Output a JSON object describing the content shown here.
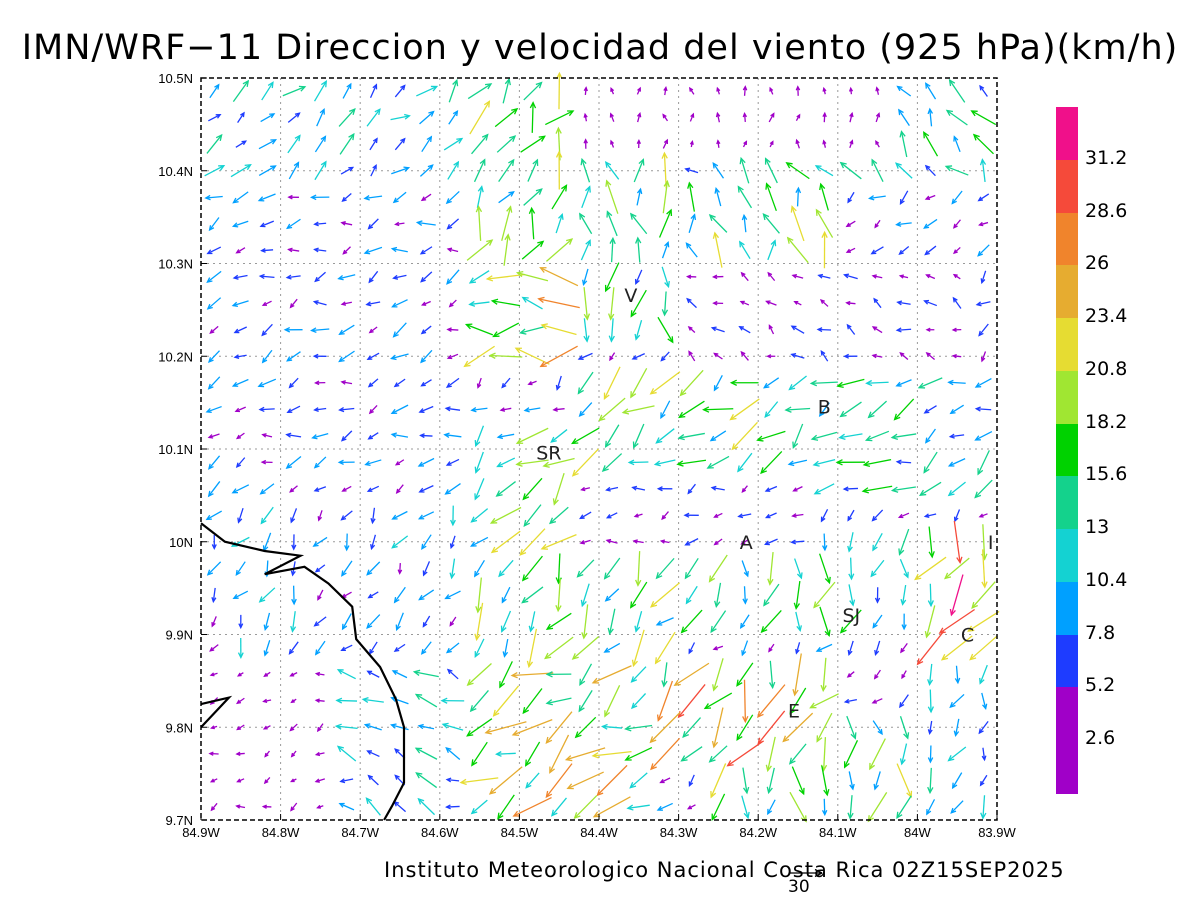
{
  "title": "IMN/WRF−11 Direccion y velocidad del viento (925 hPa)(km/h)",
  "footer": "Instituto Meteorologico Nacional Costa Rica 02Z15SEP2025",
  "reference_vector": {
    "label": "30",
    "value": 30
  },
  "colorbar": {
    "levels": [
      "31.2",
      "28.6",
      "26",
      "23.4",
      "20.8",
      "18.2",
      "15.6",
      "13",
      "10.4",
      "7.8",
      "5.2",
      "2.6"
    ],
    "colors": [
      "#f0108a",
      "#f54a3a",
      "#f0842c",
      "#e6ac30",
      "#e6dc32",
      "#a0e632",
      "#00d200",
      "#14d28c",
      "#14d2d2",
      "#00a0ff",
      "#1e3cff",
      "#a000c8",
      "#a000c8"
    ]
  },
  "chart_data": {
    "type": "vector-field",
    "title": "IMN/WRF−11 Direccion y velocidad del viento (925 hPa)(km/h)",
    "x_ticks": [
      "84.9W",
      "84.8W",
      "84.7W",
      "84.6W",
      "84.5W",
      "84.4W",
      "84.3W",
      "84.2W",
      "84.1W",
      "84W",
      "83.9W"
    ],
    "y_ticks": [
      "10.5N",
      "10.4N",
      "10.3N",
      "10.2N",
      "10.1N",
      "10N",
      "9.9N",
      "9.8N",
      "9.7N"
    ],
    "xlim": [
      -84.9,
      -83.9
    ],
    "ylim": [
      9.7,
      10.5
    ],
    "grid": true,
    "city_labels": [
      {
        "text": "V",
        "lon": -84.36,
        "lat": 10.266
      },
      {
        "text": "B",
        "lon": -84.117,
        "lat": 10.146
      },
      {
        "text": "SR",
        "lon": -84.463,
        "lat": 10.096
      },
      {
        "text": "A",
        "lon": -84.215,
        "lat": 10.0
      },
      {
        "text": "I",
        "lon": -83.908,
        "lat": 10.0
      },
      {
        "text": "SJ",
        "lon": -84.083,
        "lat": 9.921
      },
      {
        "text": "C",
        "lon": -83.937,
        "lat": 9.9
      },
      {
        "text": "E",
        "lon": -84.155,
        "lat": 9.818
      }
    ],
    "coastline": [
      [
        -84.9,
        10.02
      ],
      [
        -84.87,
        10.0
      ],
      [
        -84.82,
        9.99
      ],
      [
        -84.775,
        9.985
      ],
      [
        -84.82,
        9.965
      ],
      [
        -84.77,
        9.973
      ],
      [
        -84.74,
        9.955
      ],
      [
        -84.71,
        9.93
      ],
      [
        -84.705,
        9.895
      ],
      [
        -84.675,
        9.865
      ],
      [
        -84.655,
        9.83
      ],
      [
        -84.645,
        9.8
      ],
      [
        -84.645,
        9.74
      ],
      [
        -84.66,
        9.715
      ],
      [
        -84.67,
        9.7
      ]
    ],
    "coastline_2": [
      [
        -84.9,
        9.825
      ],
      [
        -84.865,
        9.832
      ],
      [
        -84.9,
        9.8
      ]
    ],
    "wind_regions": [
      {
        "lon": [
          -84.9,
          -84.58
        ],
        "lat": [
          10.38,
          10.5
        ],
        "dir_deg": 45,
        "speed_kmh": 10
      },
      {
        "lon": [
          -84.58,
          -84.42
        ],
        "lat": [
          10.3,
          10.5
        ],
        "dir_deg": 60,
        "speed_kmh": 16
      },
      {
        "lon": [
          -84.42,
          -84.05
        ],
        "lat": [
          10.42,
          10.5
        ],
        "dir_deg": 90,
        "speed_kmh": 3
      },
      {
        "lon": [
          -84.3,
          -83.9
        ],
        "lat": [
          10.38,
          10.5
        ],
        "dir_deg": 130,
        "speed_kmh": 11
      },
      {
        "lon": [
          -84.58,
          -84.1
        ],
        "lat": [
          10.3,
          10.42
        ],
        "dir_deg": 100,
        "speed_kmh": 15
      },
      {
        "lon": [
          -84.9,
          -84.58
        ],
        "lat": [
          10.05,
          10.38
        ],
        "dir_deg": 200,
        "speed_kmh": 7
      },
      {
        "lon": [
          -84.6,
          -84.45
        ],
        "lat": [
          10.18,
          10.3
        ],
        "dir_deg": 180,
        "speed_kmh": 19
      },
      {
        "lon": [
          -84.45,
          -84.3
        ],
        "lat": [
          10.22,
          10.3
        ],
        "dir_deg": 270,
        "speed_kmh": 14
      },
      {
        "lon": [
          -84.3,
          -83.95
        ],
        "lat": [
          10.18,
          10.3
        ],
        "dir_deg": 150,
        "speed_kmh": 5
      },
      {
        "lon": [
          -84.42,
          -84.12
        ],
        "lat": [
          10.08,
          10.18
        ],
        "dir_deg": 215,
        "speed_kmh": 16
      },
      {
        "lon": [
          -84.12,
          -83.9
        ],
        "lat": [
          10.05,
          10.18
        ],
        "dir_deg": 210,
        "speed_kmh": 12
      },
      {
        "lon": [
          -84.58,
          -84.42
        ],
        "lat": [
          10.02,
          10.12
        ],
        "dir_deg": 220,
        "speed_kmh": 15
      },
      {
        "lon": [
          -84.42,
          -84.12
        ],
        "lat": [
          10.0,
          10.08
        ],
        "dir_deg": 200,
        "speed_kmh": 5
      },
      {
        "lon": [
          -84.9,
          -84.58
        ],
        "lat": [
          9.88,
          10.05
        ],
        "dir_deg": 240,
        "speed_kmh": 8
      },
      {
        "lon": [
          -84.58,
          -84.3
        ],
        "lat": [
          9.88,
          10.0
        ],
        "dir_deg": 235,
        "speed_kmh": 16
      },
      {
        "lon": [
          -84.3,
          -84.0
        ],
        "lat": [
          9.9,
          10.0
        ],
        "dir_deg": 260,
        "speed_kmh": 14
      },
      {
        "lon": [
          -84.0,
          -83.9
        ],
        "lat": [
          9.88,
          10.0
        ],
        "dir_deg": 245,
        "speed_kmh": 22
      },
      {
        "lon": [
          -84.9,
          -84.75
        ],
        "lat": [
          9.7,
          9.88
        ],
        "dir_deg": 200,
        "speed_kmh": 3
      },
      {
        "lon": [
          -84.75,
          -84.58
        ],
        "lat": [
          9.7,
          9.88
        ],
        "dir_deg": 160,
        "speed_kmh": 10
      },
      {
        "lon": [
          -84.58,
          -84.35
        ],
        "lat": [
          9.7,
          9.88
        ],
        "dir_deg": 210,
        "speed_kmh": 19
      },
      {
        "lon": [
          -84.35,
          -84.1
        ],
        "lat": [
          9.77,
          9.88
        ],
        "dir_deg": 240,
        "speed_kmh": 22
      },
      {
        "lon": [
          -84.25,
          -84.0
        ],
        "lat": [
          9.7,
          9.8
        ],
        "dir_deg": 270,
        "speed_kmh": 15
      },
      {
        "lon": [
          -84.0,
          -83.9
        ],
        "lat": [
          9.7,
          9.88
        ],
        "dir_deg": 250,
        "speed_kmh": 10
      }
    ]
  }
}
